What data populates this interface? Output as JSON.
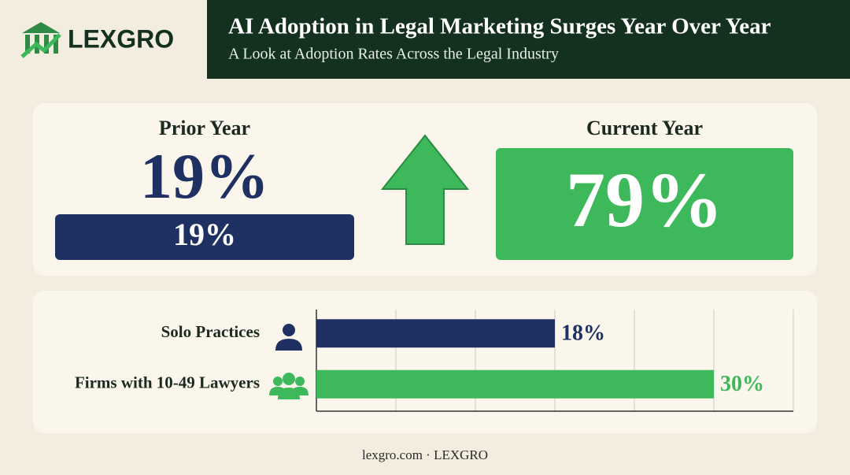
{
  "header": {
    "brand": "LEXGRO",
    "title": "AI Adoption in Legal Marketing Surges Year Over Year",
    "subtitle": "A Look at Adoption Rates Across the Legal Industry"
  },
  "comparison": {
    "prior": {
      "label": "Prior Year",
      "value": "19%",
      "bar_value": "19%"
    },
    "current": {
      "label": "Current Year",
      "value": "79%"
    }
  },
  "chart_data": {
    "type": "bar",
    "orientation": "horizontal",
    "categories": [
      "Solo Practices",
      "Firms with 10-49 Lawyers"
    ],
    "values": [
      18,
      30
    ],
    "value_labels": [
      "18%",
      "30%"
    ],
    "colors": [
      "#1f3163",
      "#3db85a"
    ],
    "xlim": [
      0,
      36
    ],
    "xticks": [
      0,
      6,
      12,
      18,
      24,
      30,
      36
    ],
    "grid": true
  },
  "footer": "lexgro.com · LEXGRO"
}
